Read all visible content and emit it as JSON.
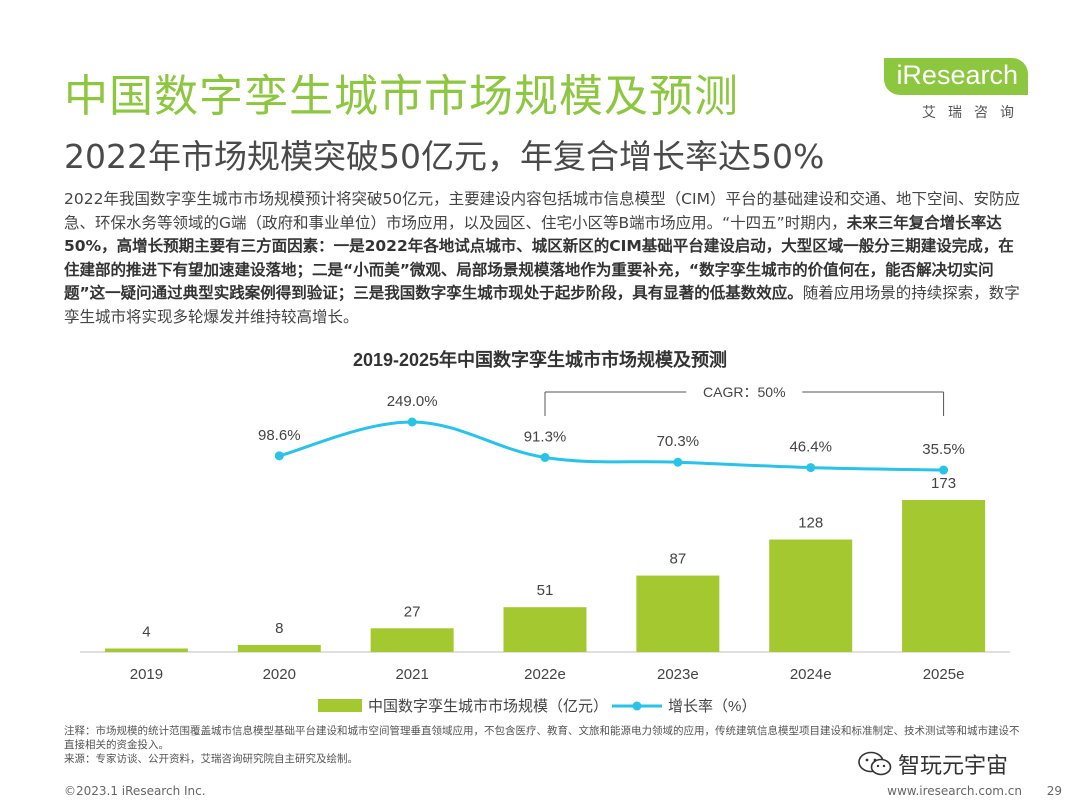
{
  "header": {
    "title": "中国数字孪生城市市场规模及预测",
    "subtitle": "2022年市场规模突破50亿元，年复合增长率达50%",
    "logo_main": "iResearch",
    "logo_sub": "艾瑞咨询"
  },
  "body": {
    "p1": "2022年我国数字孪生城市市场规模预计将突破50亿元，主要建设内容包括城市信息模型（CIM）平台的基础建设和交通、地下空间、安防应急、环保水务等领域的G端（政府和事业单位）市场应用，以及园区、住宅小区等B端市场应用。“十四五”时期内，",
    "p_bold": "未来三年复合增长率达50%，高增长预期主要有三方面因素：一是2022年各地试点城市、城区新区的CIM基础平台建设启动，大型区域一般分三期建设完成，在住建部的推进下有望加速建设落地；二是“小而美”微观、局部场景规模落地作为重要补充，“数字孪生城市的价值何在，能否解决切实问题”这一疑问通过典型实践案例得到验证；三是我国数字孪生城市现处于起步阶段，具有显著的低基数效应。",
    "p2": "随着应用场景的持续探索，数字孪生城市将实现多轮爆发并维持较高增长。"
  },
  "chart_data": {
    "type": "bar",
    "title": "2019-2025年中国数字孪生城市市场规模及预测",
    "categories": [
      "2019",
      "2020",
      "2021",
      "2022e",
      "2023e",
      "2024e",
      "2025e"
    ],
    "series": [
      {
        "name": "中国数字孪生城市市场规模（亿元）",
        "type": "bar",
        "values": [
          4,
          8,
          27,
          51,
          87,
          128,
          173
        ],
        "color": "#a4c930"
      },
      {
        "name": "增长率（%）",
        "type": "line",
        "values": [
          null,
          98.6,
          249.0,
          91.3,
          70.3,
          46.4,
          35.5
        ],
        "labels": [
          "",
          "98.6%",
          "249.0%",
          "91.3%",
          "70.3%",
          "46.4%",
          "35.5%"
        ],
        "color": "#29c3e8"
      }
    ],
    "annotation": "CAGR：50%",
    "annotation_range": [
      "2022e",
      "2025e"
    ],
    "ylim": [
      0,
      180
    ],
    "y2lim": [
      0,
      260
    ],
    "legend": "bottom-center",
    "xlabel": "",
    "ylabel": ""
  },
  "notes": {
    "note": "注释：市场规模的统计范围覆盖城市信息模型基础平台建设和城市空间管理垂直领域应用，不包含医疗、教育、文旅和能源电力领域的应用，传统建筑信息模型项目建设和标准制定、技术测试等和城市建设不直接相关的资金投入。",
    "source": "来源：专家访谈、公开资料，艾瑞咨询研究院自主研究及绘制。"
  },
  "footer": {
    "copyright": "©2023.1 iResearch Inc.",
    "website": "www.iresearch.com.cn",
    "page": "29",
    "wechat_label": "智玩元宇宙"
  }
}
